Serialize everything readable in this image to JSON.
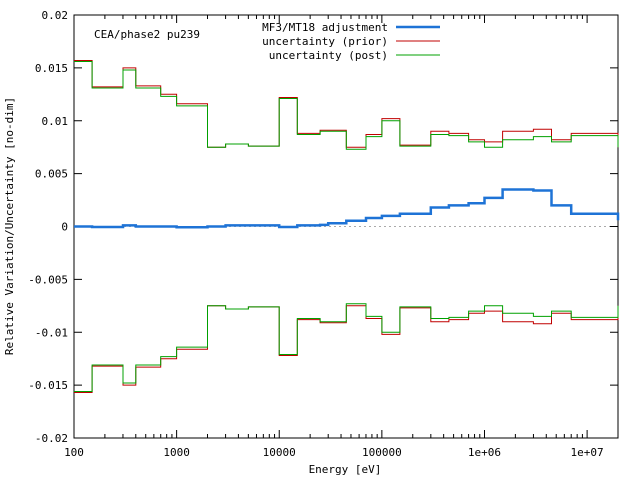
{
  "chart_data": {
    "type": "line",
    "title": "",
    "annotation": "CEA/phase2 pu239",
    "xlabel": "Energy [eV]",
    "ylabel": "Relative Variation/Uncertainty [no-dim]",
    "x_scale": "log",
    "xlim": [
      100,
      20000000
    ],
    "ylim": [
      -0.02,
      0.02
    ],
    "grid": false,
    "legend_position": "top-right",
    "x_ticks": [
      {
        "value": 100,
        "label": "100"
      },
      {
        "value": 1000,
        "label": "1000"
      },
      {
        "value": 10000,
        "label": "10000"
      },
      {
        "value": 100000,
        "label": "100000"
      },
      {
        "value": 1000000,
        "label": "1e+06"
      },
      {
        "value": 10000000,
        "label": "1e+07"
      }
    ],
    "y_ticks": [
      {
        "value": -0.02,
        "label": "-0.02"
      },
      {
        "value": -0.015,
        "label": "-0.015"
      },
      {
        "value": -0.01,
        "label": "-0.01"
      },
      {
        "value": -0.005,
        "label": "-0.005"
      },
      {
        "value": 0,
        "label": "0"
      },
      {
        "value": 0.005,
        "label": "0.005"
      },
      {
        "value": 0.01,
        "label": "0.01"
      },
      {
        "value": 0.015,
        "label": "0.015"
      },
      {
        "value": 0.02,
        "label": "0.02"
      }
    ],
    "bin_edges": [
      100,
      150,
      300,
      400,
      700,
      1000,
      1500,
      2000,
      3000,
      5000,
      10000,
      15000,
      25000,
      30000,
      45000,
      70000,
      100000,
      150000,
      300000,
      450000,
      700000,
      1000000,
      1500000,
      3000000,
      4500000,
      7000000,
      20000000
    ],
    "series": [
      {
        "name": "MF3/MT18 adjustment",
        "color": "#1e73d6",
        "style": "thick",
        "values": [
          0,
          -5e-05,
          0.0001,
          0.0,
          0.0,
          -8e-05,
          -8e-05,
          0.0,
          0.0001,
          0.0001,
          -5e-05,
          0.0001,
          0.00015,
          0.0003,
          0.00055,
          0.0008,
          0.001,
          0.0012,
          0.0018,
          0.002,
          0.0022,
          0.0027,
          0.0035,
          0.0034,
          0.002,
          0.0012,
          0.0006
        ]
      },
      {
        "name": "uncertainty (prior)",
        "color": "#c00000",
        "style": "thin",
        "values": [
          0.0157,
          0.0132,
          0.015,
          0.0133,
          0.0125,
          0.0116,
          0.0116,
          0.0075,
          0.0078,
          0.0076,
          0.0122,
          0.0088,
          0.0091,
          0.0091,
          0.0075,
          0.0087,
          0.0102,
          0.0077,
          0.009,
          0.0088,
          0.0082,
          0.008,
          0.009,
          0.0092,
          0.0082,
          0.0088,
          0.0075
        ]
      },
      {
        "name": "uncertainty (post)",
        "color": "#00a000",
        "style": "thin",
        "values": [
          0.0156,
          0.0131,
          0.0148,
          0.0131,
          0.0123,
          0.0114,
          0.0114,
          0.0075,
          0.0078,
          0.0076,
          0.0121,
          0.0087,
          0.009,
          0.009,
          0.0073,
          0.0085,
          0.01,
          0.0076,
          0.0087,
          0.0086,
          0.008,
          0.0075,
          0.0082,
          0.0085,
          0.008,
          0.0086,
          0.0075
        ]
      }
    ],
    "mirrored_series": [
      "uncertainty (prior)",
      "uncertainty (post)"
    ],
    "zero_line": {
      "style": "dotted",
      "color": "#aaaaaa"
    }
  }
}
